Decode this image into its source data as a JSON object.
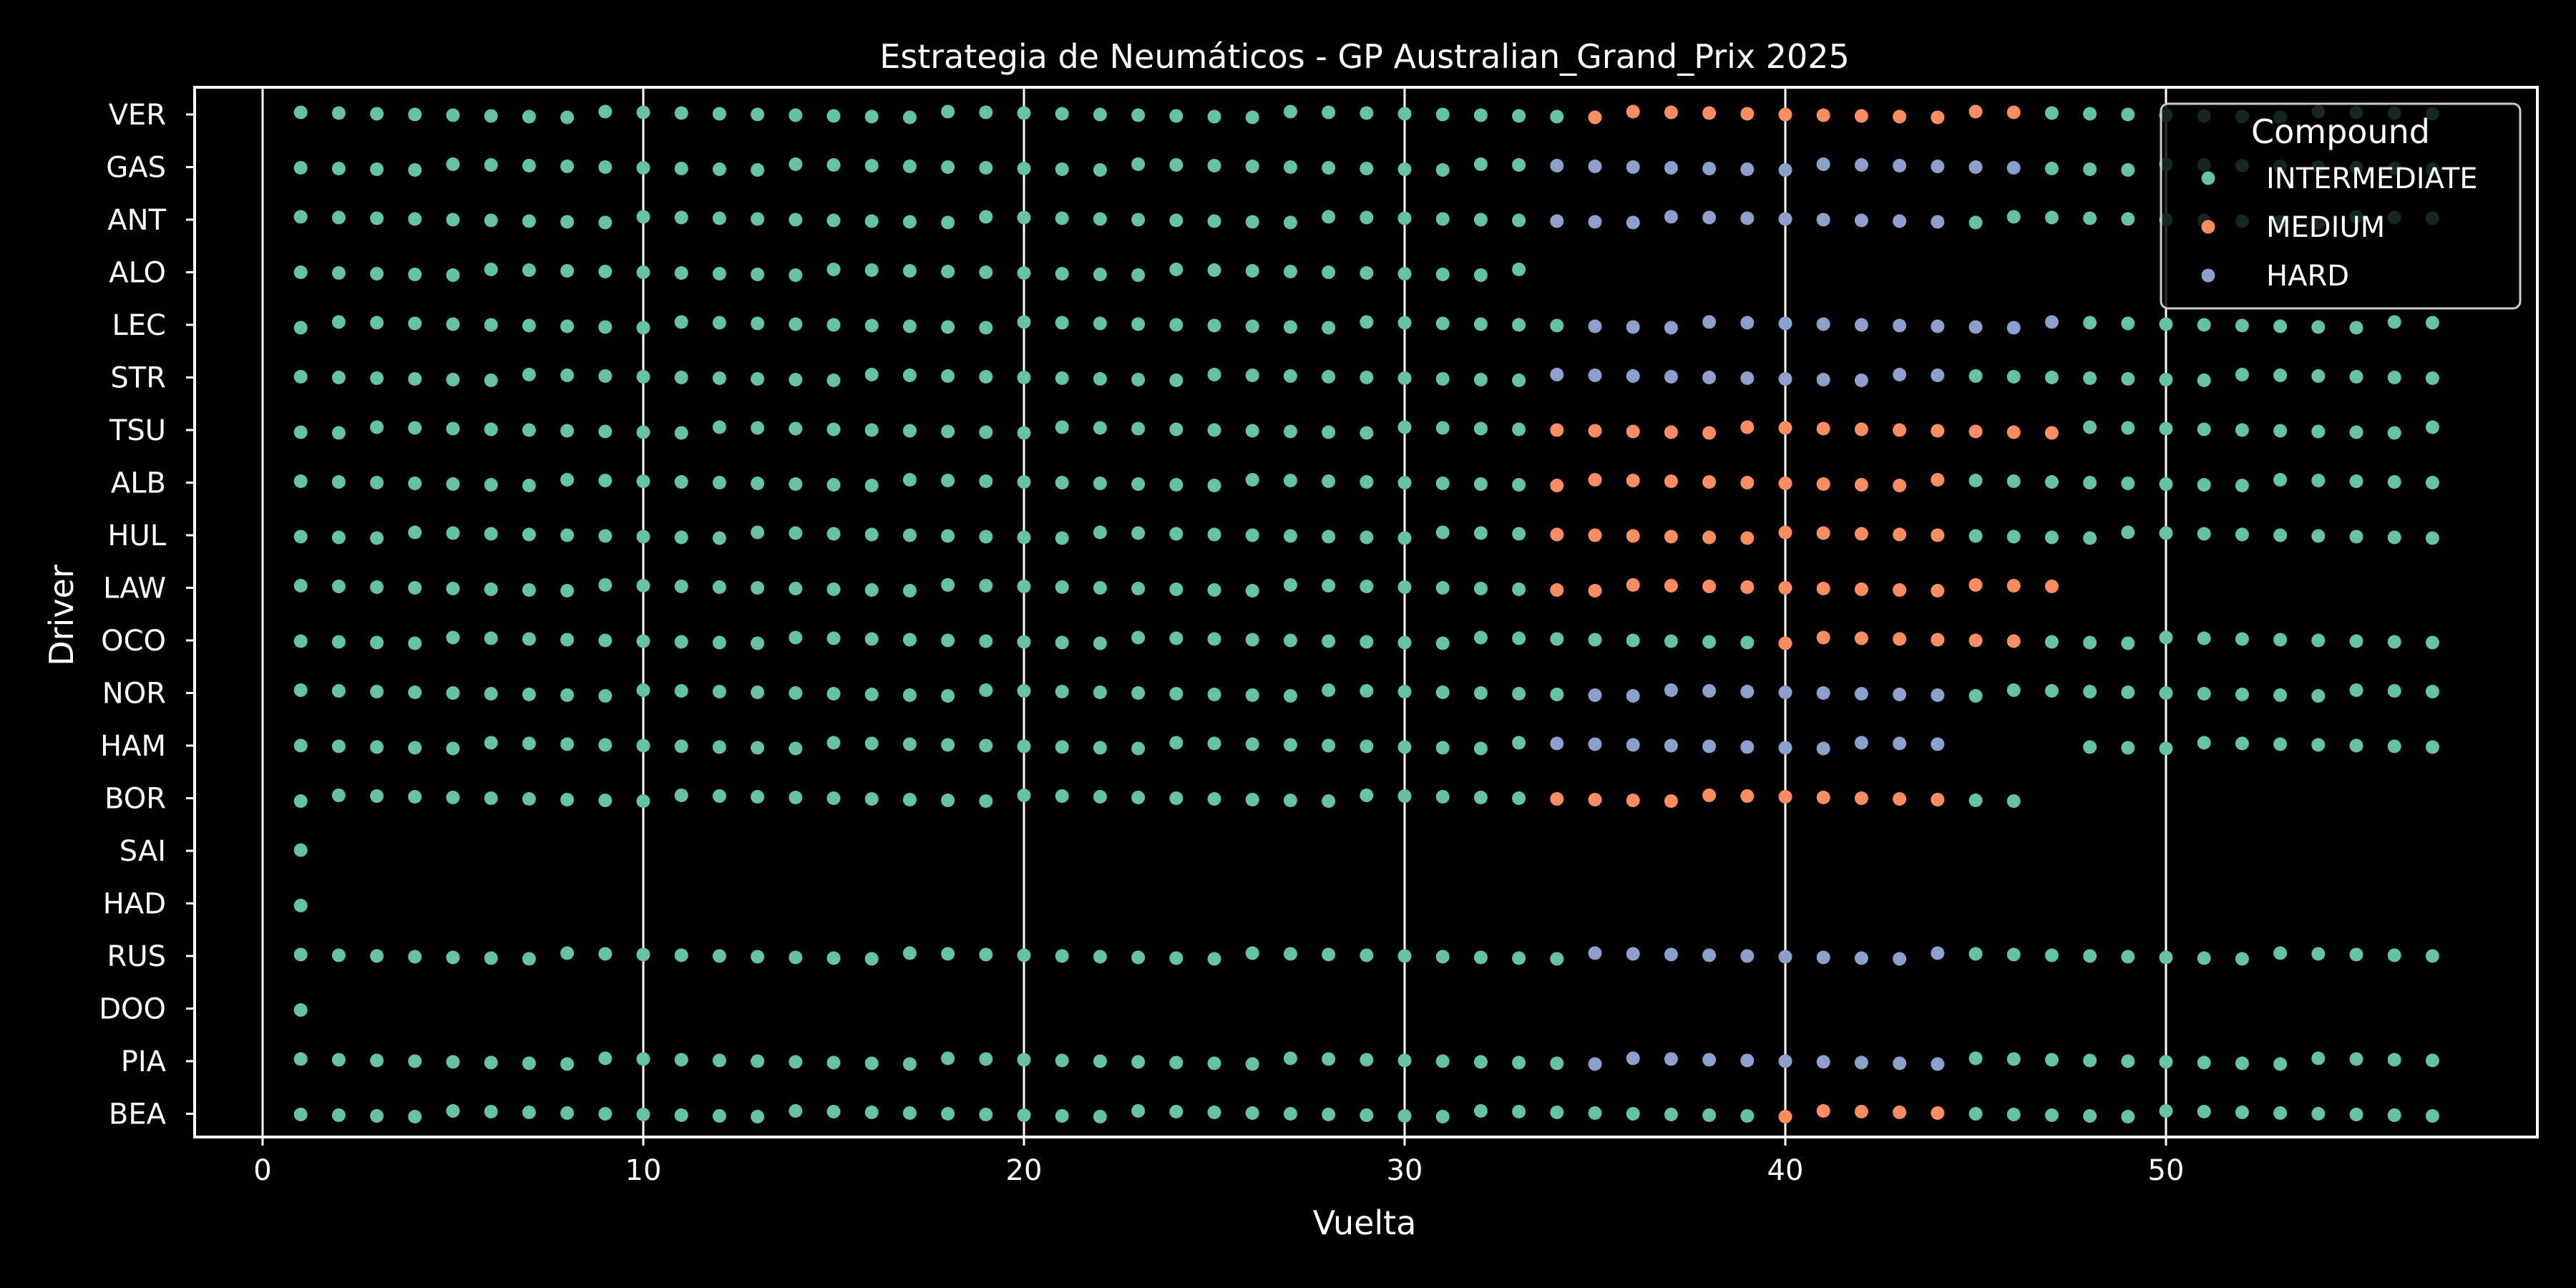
{
  "chart_data": {
    "type": "scatter",
    "title": "Estrategia de Neumáticos - GP Australian_Grand_Prix 2025",
    "xlabel": "Vuelta",
    "ylabel": "Driver",
    "xlim": [
      -1.8,
      59.5
    ],
    "x_ticks": [
      0,
      10,
      20,
      30,
      40,
      50
    ],
    "grid": "vertical",
    "legend": {
      "title": "Compound",
      "placement": "top-right",
      "entries": [
        "INTERMEDIATE",
        "MEDIUM",
        "HARD"
      ]
    },
    "colors": {
      "INTERMEDIATE": "#66c2a5",
      "MEDIUM": "#fc8d62",
      "HARD": "#8da0cb",
      "background": "#000000",
      "foreground": "#ffffff"
    },
    "drivers": [
      "VER",
      "GAS",
      "ANT",
      "ALO",
      "LEC",
      "STR",
      "TSU",
      "ALB",
      "HUL",
      "LAW",
      "OCO",
      "NOR",
      "HAM",
      "BOR",
      "SAI",
      "HAD",
      "RUS",
      "DOO",
      "PIA",
      "BEA"
    ],
    "stints": {
      "VER": [
        [
          "INTERMEDIATE",
          1,
          34
        ],
        [
          "MEDIUM",
          35,
          46
        ],
        [
          "INTERMEDIATE",
          47,
          57
        ]
      ],
      "GAS": [
        [
          "INTERMEDIATE",
          1,
          33
        ],
        [
          "HARD",
          34,
          46
        ],
        [
          "INTERMEDIATE",
          47,
          57
        ]
      ],
      "ANT": [
        [
          "INTERMEDIATE",
          1,
          33
        ],
        [
          "HARD",
          34,
          44
        ],
        [
          "INTERMEDIATE",
          45,
          57
        ]
      ],
      "ALO": [
        [
          "INTERMEDIATE",
          1,
          33
        ]
      ],
      "LEC": [
        [
          "INTERMEDIATE",
          1,
          34
        ],
        [
          "HARD",
          35,
          47
        ],
        [
          "INTERMEDIATE",
          48,
          57
        ]
      ],
      "STR": [
        [
          "INTERMEDIATE",
          1,
          33
        ],
        [
          "HARD",
          34,
          44
        ],
        [
          "INTERMEDIATE",
          45,
          57
        ]
      ],
      "TSU": [
        [
          "INTERMEDIATE",
          1,
          33
        ],
        [
          "MEDIUM",
          34,
          47
        ],
        [
          "INTERMEDIATE",
          48,
          57
        ]
      ],
      "ALB": [
        [
          "INTERMEDIATE",
          1,
          33
        ],
        [
          "MEDIUM",
          34,
          44
        ],
        [
          "INTERMEDIATE",
          45,
          57
        ]
      ],
      "HUL": [
        [
          "INTERMEDIATE",
          1,
          33
        ],
        [
          "MEDIUM",
          34,
          44
        ],
        [
          "INTERMEDIATE",
          45,
          57
        ]
      ],
      "LAW": [
        [
          "INTERMEDIATE",
          1,
          33
        ],
        [
          "MEDIUM",
          34,
          47
        ]
      ],
      "OCO": [
        [
          "INTERMEDIATE",
          1,
          39
        ],
        [
          "MEDIUM",
          40,
          46
        ],
        [
          "INTERMEDIATE",
          47,
          57
        ]
      ],
      "NOR": [
        [
          "INTERMEDIATE",
          1,
          34
        ],
        [
          "HARD",
          35,
          44
        ],
        [
          "INTERMEDIATE",
          45,
          57
        ]
      ],
      "HAM": [
        [
          "INTERMEDIATE",
          1,
          33
        ],
        [
          "HARD",
          34,
          44
        ],
        [
          "INTERMEDIATE",
          48,
          57
        ]
      ],
      "BOR": [
        [
          "INTERMEDIATE",
          1,
          33
        ],
        [
          "MEDIUM",
          34,
          44
        ],
        [
          "INTERMEDIATE",
          45,
          46
        ]
      ],
      "SAI": [
        [
          "INTERMEDIATE",
          1,
          1
        ]
      ],
      "HAD": [
        [
          "INTERMEDIATE",
          1,
          1
        ]
      ],
      "RUS": [
        [
          "INTERMEDIATE",
          1,
          34
        ],
        [
          "HARD",
          35,
          44
        ],
        [
          "INTERMEDIATE",
          45,
          57
        ]
      ],
      "DOO": [
        [
          "INTERMEDIATE",
          1,
          1
        ]
      ],
      "PIA": [
        [
          "INTERMEDIATE",
          1,
          34
        ],
        [
          "HARD",
          35,
          44
        ],
        [
          "INTERMEDIATE",
          45,
          57
        ]
      ],
      "BEA": [
        [
          "INTERMEDIATE",
          1,
          39
        ],
        [
          "MEDIUM",
          40,
          44
        ],
        [
          "INTERMEDIATE",
          45,
          57
        ]
      ]
    }
  }
}
